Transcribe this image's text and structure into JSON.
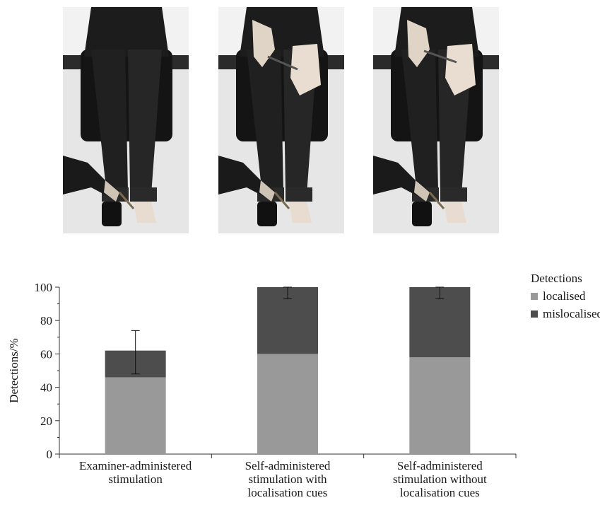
{
  "photos": [
    {
      "name": "examiner-administered"
    },
    {
      "name": "self-administered-with-cues"
    },
    {
      "name": "self-administered-without-cues"
    }
  ],
  "colors": {
    "localised": "#999999",
    "mislocalised": "#4d4d4d",
    "axis": "#333333"
  },
  "chart_data": {
    "type": "bar",
    "stacked": true,
    "categories": [
      [
        "Examiner-administered",
        "stimulation"
      ],
      [
        "Self-administered",
        "stimulation with",
        "localisation cues"
      ],
      [
        "Self-administered",
        "stimulation without",
        "localisation cues"
      ]
    ],
    "series": [
      {
        "name": "localised",
        "values": [
          46,
          60,
          58
        ]
      },
      {
        "name": "mislocalised",
        "values": [
          16,
          40,
          42
        ]
      }
    ],
    "error_bars": [
      {
        "center": 62,
        "low": 48,
        "high": 74
      },
      {
        "center": 100,
        "low": 93,
        "high": 100
      },
      {
        "center": 100,
        "low": 93,
        "high": 100
      }
    ],
    "ylabel": "Detections/%",
    "ylim": [
      0,
      100
    ],
    "yticks": [
      0,
      20,
      40,
      60,
      80,
      100
    ],
    "legend_title": "Detections",
    "legend_position": "top-right",
    "grid": false
  }
}
